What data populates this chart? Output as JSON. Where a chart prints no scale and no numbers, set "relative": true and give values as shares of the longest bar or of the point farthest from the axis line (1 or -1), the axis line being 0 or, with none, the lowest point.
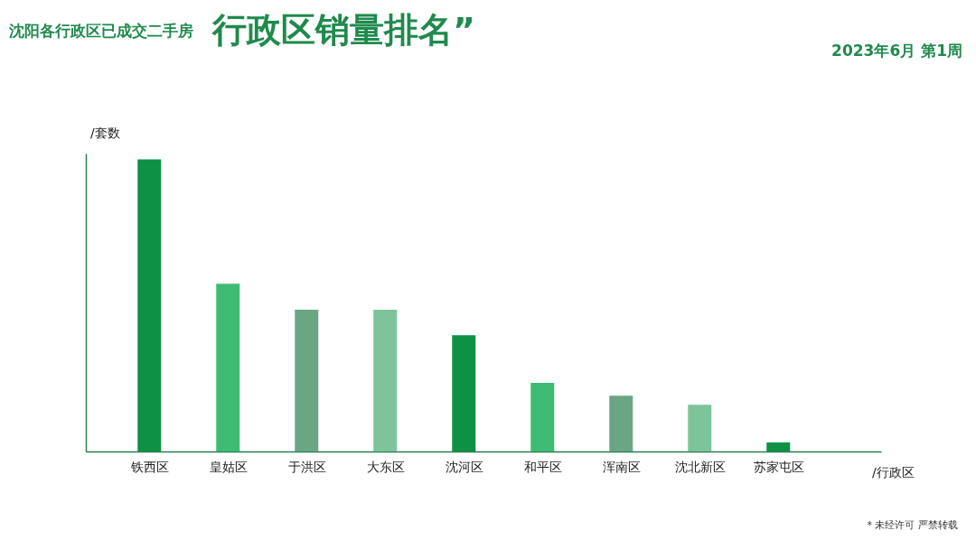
{
  "chart_data": {
    "type": "bar",
    "title": "行政区销量排名”",
    "subtitle": "2023年6月 第1周",
    "xlabel": "/行政区",
    "ylabel": "/套数",
    "annotations": [
      "沈阳各行政区已成交二手房",
      "* 未经许可 严禁转载"
    ],
    "categories": [
      "铁西区",
      "皇姑区",
      "于洪区",
      "大东区",
      "沈河区",
      "和平区",
      "浑南区",
      "沈北新区",
      "苏家屯区"
    ],
    "values": [
      1,
      0.574,
      0.485,
      0.485,
      0.398,
      0.235,
      0.191,
      0.16,
      0.031
    ],
    "colors": [
      "#0e9144",
      "#3dbb74",
      "#6aa684",
      "#7dc49a",
      "#0e9144",
      "#3dbb74",
      "#6aa684",
      "#7dc49a",
      "#0e9144"
    ],
    "relative": true,
    "grid": false
  }
}
